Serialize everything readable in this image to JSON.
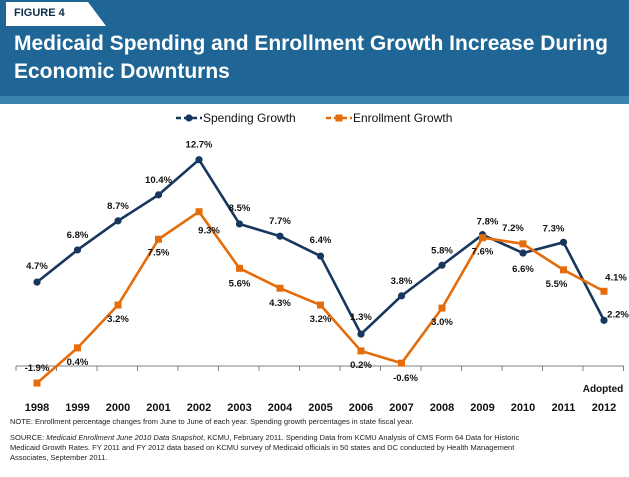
{
  "figure_label": "FIGURE 4",
  "title": "Medicaid Spending and Enrollment Growth Increase During Economic Downturns",
  "note": "NOTE: Enrollment percentage changes from June  to June of each year.  Spending growth percentages in state fiscal year.",
  "source": {
    "prefix": "SOURCE: ",
    "italic": "Medicaid Enrollment June 2010 Data Snapshot",
    "rest": ", KCMU, February 2011. Spending Data from KCMU Analysis of CMS Form 64 Data for Historic Medicaid Growth Rates.  FY 2011 and FY 2012 data based on KCMU survey of Medicaid officials in 50 states and DC conducted by Health Management Associates, September 2011."
  },
  "chart_data": {
    "type": "line",
    "x": [
      "1998",
      "1999",
      "2000",
      "2001",
      "2002",
      "2003",
      "2004",
      "2005",
      "2006",
      "2007",
      "2008",
      "2009",
      "2010",
      "2011",
      "2012"
    ],
    "series": [
      {
        "name": "Spending Growth",
        "color": "#17375e",
        "marker": "circle",
        "values": [
          4.7,
          6.8,
          8.7,
          10.4,
          12.7,
          8.5,
          7.7,
          6.4,
          1.3,
          3.8,
          5.8,
          7.8,
          6.6,
          7.3,
          2.2
        ],
        "labels": [
          "4.7%",
          "6.8%",
          "8.7%",
          "10.4%",
          "12.7%",
          "8.5%",
          "7.7%",
          "6.4%",
          "1.3%",
          "3.8%",
          "5.8%",
          "7.8%",
          "6.6%",
          "7.3%",
          "2.2%"
        ]
      },
      {
        "name": "Enrollment Growth",
        "color": "#e46c0a",
        "marker": "square",
        "values": [
          -1.9,
          0.4,
          3.2,
          7.5,
          9.3,
          5.6,
          4.3,
          3.2,
          0.2,
          -0.6,
          3.0,
          7.6,
          7.2,
          5.5,
          4.1
        ],
        "labels": [
          "-1.9%",
          "0.4%",
          "3.2%",
          "7.5%",
          "9.3%",
          "5.6%",
          "4.3%",
          "3.2%",
          "0.2%",
          "-0.6%",
          "3.0%",
          "7.6%",
          "7.2%",
          "5.5%",
          "4.1%"
        ]
      }
    ],
    "annotation": "Adopted",
    "ylim": [
      -2.5,
      14
    ],
    "legend_position": "top",
    "grid": false
  }
}
